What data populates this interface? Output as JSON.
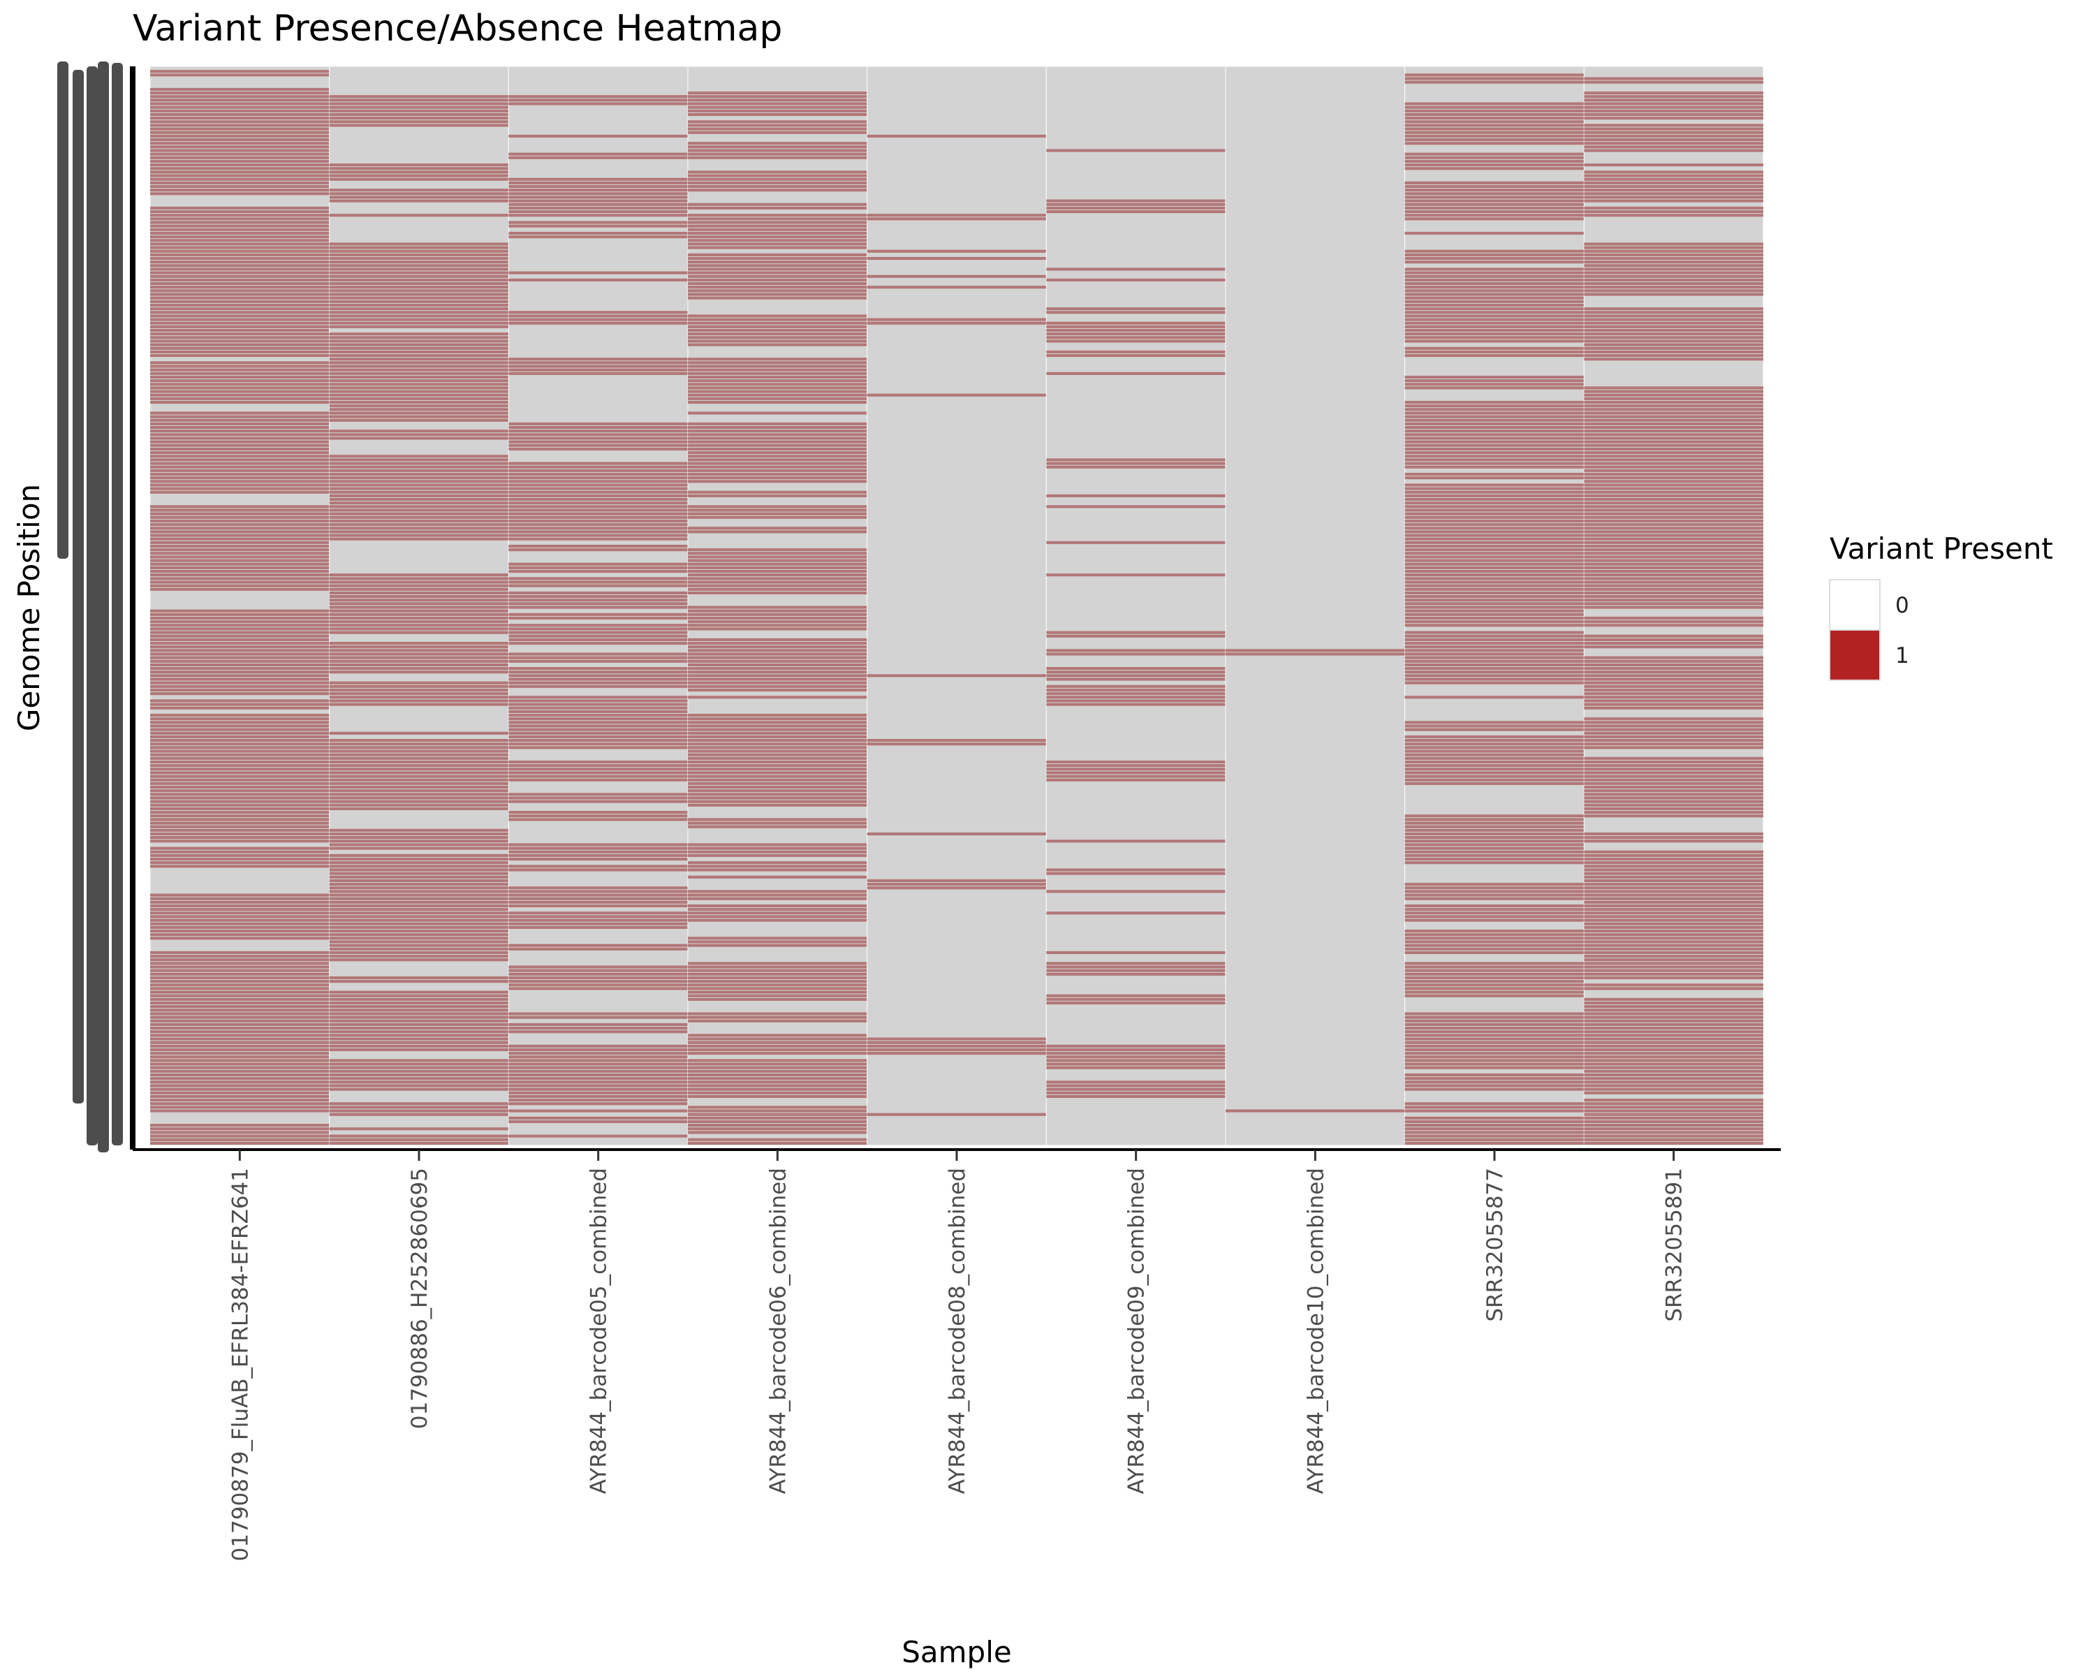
{
  "chart_data": {
    "type": "heatmap",
    "title": "Variant Presence/Absence Heatmap",
    "xlabel": "Sample",
    "ylabel": "Genome Position",
    "y_tick_labels_legible": false,
    "categories": [
      "01790879_FluAB_EFRL384-EFRZ641",
      "01790886_H252860695",
      "AYR844_barcode05_combined",
      "AYR844_barcode06_combined",
      "AYR844_barcode08_combined",
      "AYR844_barcode09_combined",
      "AYR844_barcode10_combined",
      "SRR32055877",
      "SRR32055891"
    ],
    "approx_variant_fraction": [
      0.62,
      0.55,
      0.42,
      0.55,
      0.06,
      0.18,
      0.005,
      0.6,
      0.62
    ],
    "legend": {
      "title": "Variant Present",
      "placement": "right",
      "items": [
        {
          "label": "0",
          "color": "#ffffff"
        },
        {
          "label": "1",
          "color": "#b22222"
        }
      ]
    },
    "colors": {
      "absent_cell": "#d3d3d3",
      "present_cell": "#b27777",
      "present_legend": "#b22222",
      "axis": "#000000",
      "tick_label": "#4d4d4d"
    }
  }
}
